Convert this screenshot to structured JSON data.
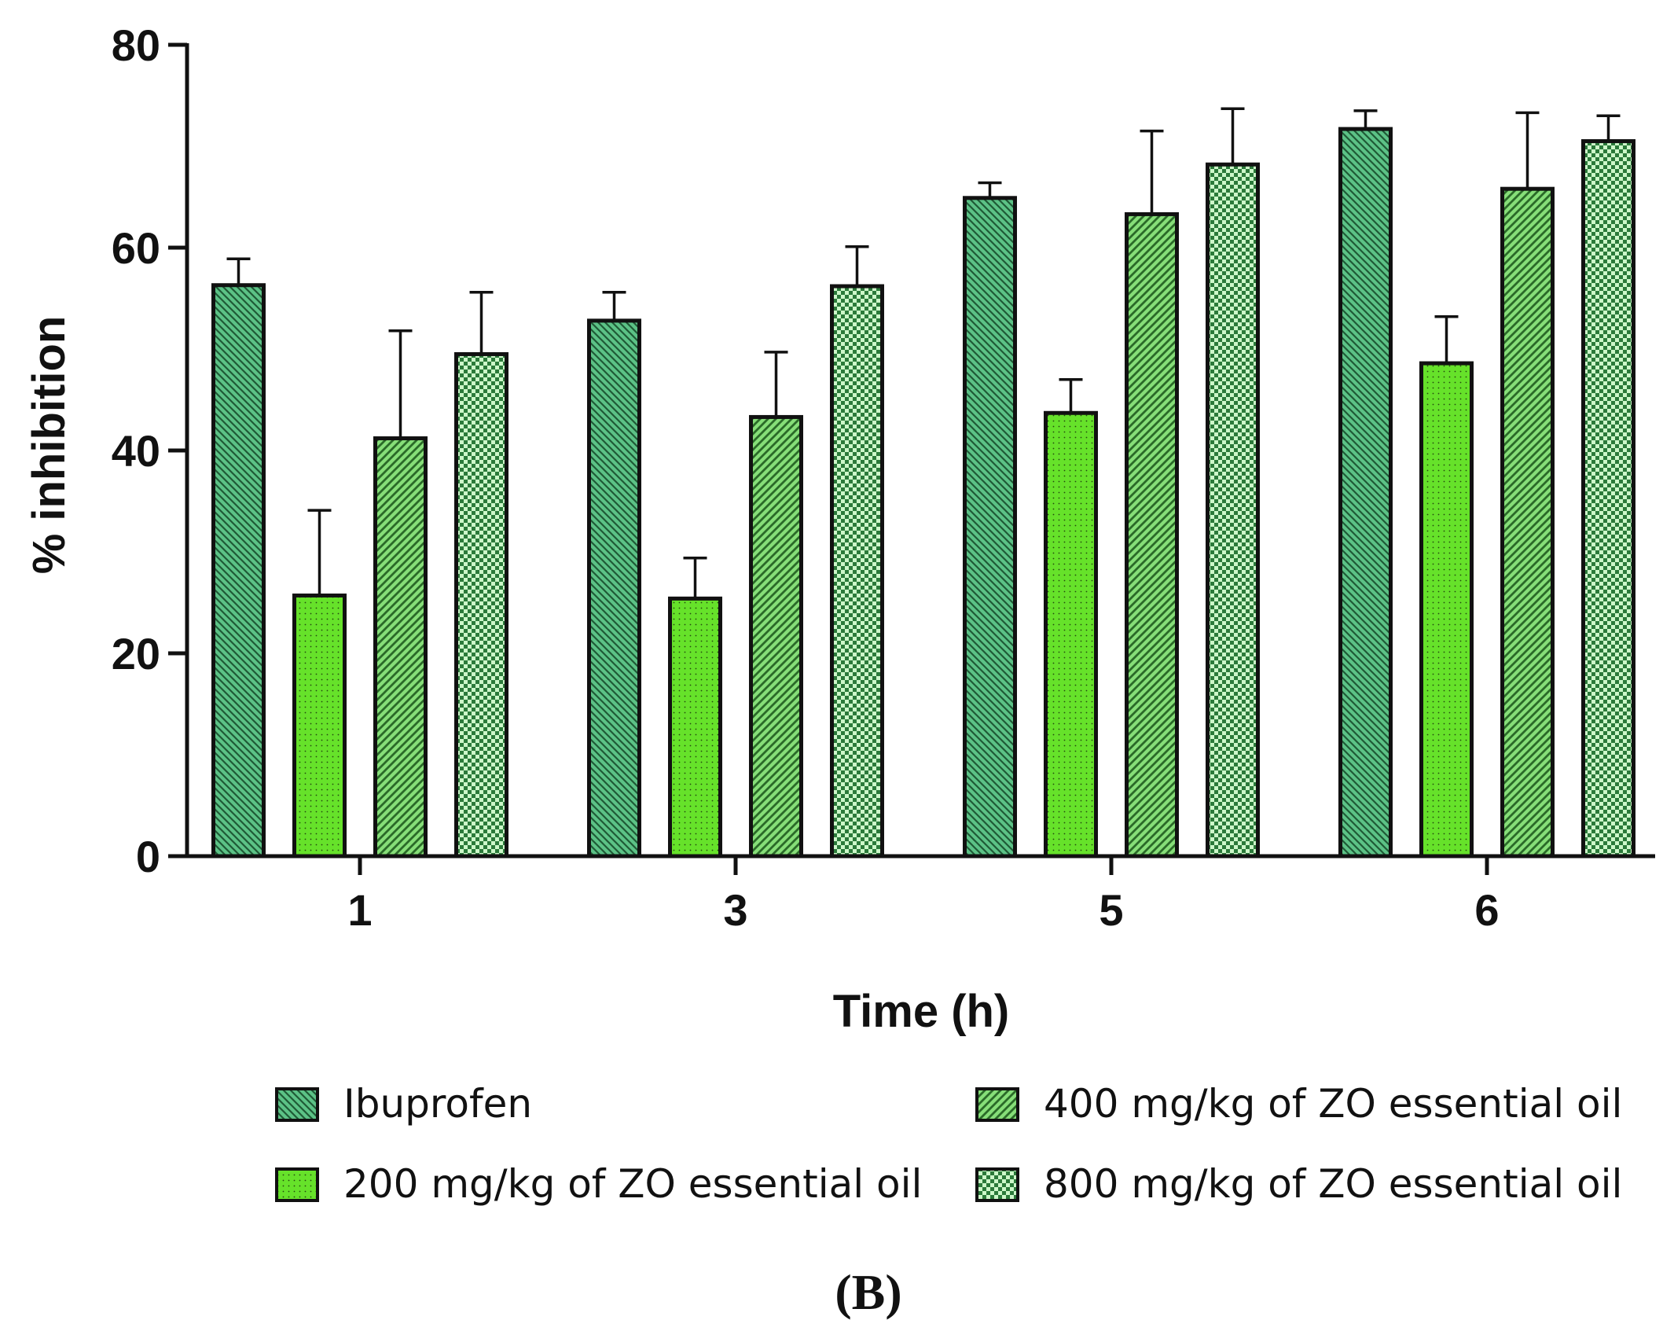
{
  "chart_data": {
    "type": "bar",
    "xlabel": "Time (h)",
    "ylabel": "% inhibition",
    "ylim": [
      0,
      80
    ],
    "yticks": [
      0,
      20,
      40,
      60,
      80
    ],
    "categories": [
      "1",
      "3",
      "5",
      "6"
    ],
    "series": [
      {
        "name": "Ibuprofen",
        "pattern": "diag-left",
        "color": "#5cc286",
        "values": [
          56.3,
          52.8,
          64.9,
          71.7
        ],
        "errors": [
          2.6,
          2.8,
          1.5,
          1.8
        ]
      },
      {
        "name": "200 mg/kg of ZO essential oil",
        "pattern": "dots",
        "color": "#66e22a",
        "values": [
          25.7,
          25.4,
          43.7,
          48.6
        ],
        "errors": [
          8.4,
          4.0,
          3.3,
          4.6
        ]
      },
      {
        "name": "400 mg/kg of ZO essential oil",
        "pattern": "diag-right",
        "color": "#86de78",
        "values": [
          41.2,
          43.3,
          63.3,
          65.8
        ],
        "errors": [
          10.6,
          6.4,
          8.2,
          7.5
        ]
      },
      {
        "name": "800 mg/kg of ZO essential oil",
        "pattern": "checker",
        "color": "#a6eea6",
        "values": [
          49.5,
          56.2,
          68.2,
          70.5
        ],
        "errors": [
          6.1,
          3.9,
          5.5,
          2.5
        ]
      }
    ],
    "legend_position": "bottom",
    "panel_label": "(B)"
  }
}
